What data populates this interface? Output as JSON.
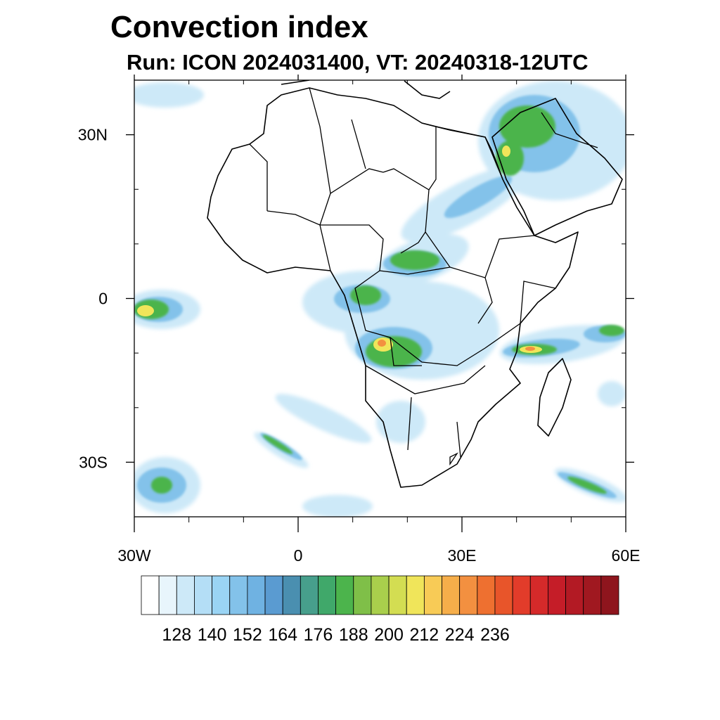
{
  "header": {
    "title": "Convection index",
    "subtitle": "Run: ICON 2024031400,  VT: 20240318-12UTC"
  },
  "map": {
    "region": "Africa",
    "extent": {
      "lon_min": -30,
      "lon_max": 60,
      "lat_min": -40,
      "lat_max": 40
    },
    "lat_ticks": [
      {
        "value": 30,
        "label": "30N"
      },
      {
        "value": 0,
        "label": "0"
      },
      {
        "value": -30,
        "label": "30S"
      }
    ],
    "lon_ticks": [
      {
        "value": -30,
        "label": "30W"
      },
      {
        "value": 0,
        "label": "0"
      },
      {
        "value": 30,
        "label": "30E"
      },
      {
        "value": 60,
        "label": "60E"
      }
    ],
    "minor_lat_ticks": [
      40,
      20,
      10,
      -10,
      -20,
      -40
    ],
    "minor_lon_ticks": [
      -20,
      -10,
      10,
      20,
      40,
      50
    ]
  },
  "colorbar": {
    "colors": [
      "#ffffff",
      "#e8f5fc",
      "#cde9f8",
      "#b4def6",
      "#9ad4f4",
      "#83c2ea",
      "#6fb2e2",
      "#5a9bd1",
      "#4a8fb0",
      "#479f8c",
      "#40a86a",
      "#4cb44c",
      "#7fbf48",
      "#a9cf4c",
      "#d3dd52",
      "#f0e55a",
      "#f8cb56",
      "#f6ae4a",
      "#f39040",
      "#ee7030",
      "#e8552a",
      "#e23c2a",
      "#d52a2a",
      "#c51d28",
      "#b31a24",
      "#a01820",
      "#8e151d"
    ],
    "labels": [
      "128",
      "140",
      "152",
      "164",
      "176",
      "188",
      "200",
      "212",
      "224",
      "236"
    ]
  }
}
